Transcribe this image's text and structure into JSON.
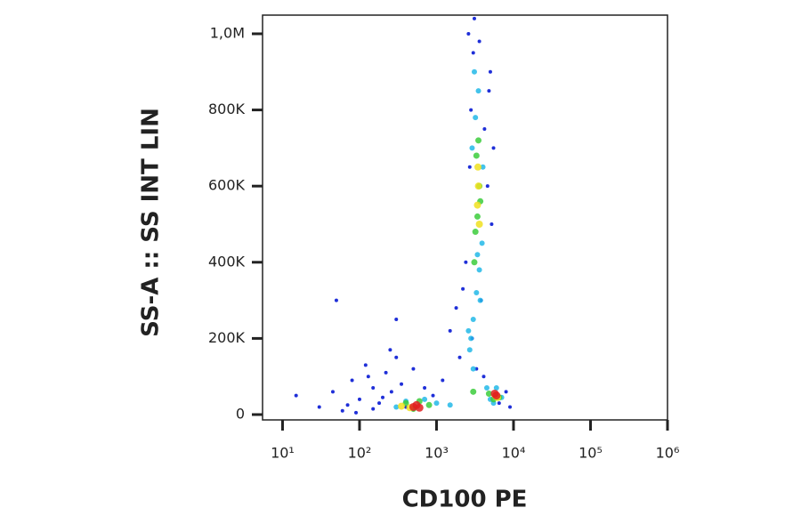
{
  "chart_data": {
    "type": "scatter",
    "x_label": "CD100 PE",
    "y_label": "SS-A :: SS INT LIN",
    "xscale": "log",
    "xlim": [
      5.5,
      1000000
    ],
    "ylim": [
      -14000,
      1049000
    ],
    "xticks": [
      {
        "value": 10,
        "label": "10¹"
      },
      {
        "value": 100,
        "label": "10²"
      },
      {
        "value": 1000,
        "label": "10³"
      },
      {
        "value": 10000,
        "label": "10⁴"
      },
      {
        "value": 100000,
        "label": "10⁵"
      },
      {
        "value": 1000000,
        "label": "10⁶"
      }
    ],
    "yticks": [
      0,
      {
        "value": 200000,
        "label": "200K"
      },
      {
        "value": 400000,
        "label": "400K"
      },
      {
        "value": 600000,
        "label": "600K"
      },
      {
        "value": 800000,
        "label": "800K"
      },
      {
        "value": 1000000,
        "label": "1,0M"
      }
    ],
    "series": [
      {
        "color": "#1f2fd8",
        "x": [
          30,
          45,
          60,
          80,
          100,
          120,
          150,
          180,
          220,
          260,
          300,
          350,
          400,
          150,
          90,
          70,
          200,
          250,
          1500,
          2000,
          1800,
          2200,
          2600,
          3000,
          5000,
          4800,
          5500,
          4200,
          2800,
          2400,
          3100,
          4600,
          5200,
          3800,
          2900,
          3300,
          4100,
          2700,
          3600,
          6500,
          8000,
          9000,
          700,
          1200,
          900,
          50,
          15,
          500,
          300,
          130
        ],
        "y": [
          20000,
          60000,
          10000,
          90000,
          40000,
          130000,
          70000,
          30000,
          110000,
          60000,
          150000,
          80000,
          20000,
          15000,
          5000,
          25000,
          45000,
          170000,
          220000,
          150000,
          280000,
          330000,
          1000000,
          950000,
          900000,
          850000,
          700000,
          750000,
          800000,
          400000,
          1040000,
          600000,
          500000,
          300000,
          200000,
          120000,
          100000,
          650000,
          980000,
          30000,
          60000,
          20000,
          70000,
          90000,
          50000,
          300000,
          50000,
          120000,
          250000,
          100000
        ]
      },
      {
        "color": "#22b8e8",
        "x": [
          2800,
          3000,
          3300,
          3600,
          3900,
          2900,
          3200,
          3500,
          2700,
          2600,
          3100,
          3400,
          4000,
          3700,
          300,
          400,
          700,
          1000,
          1500,
          4500,
          5000,
          6000,
          7000,
          5500,
          3000
        ],
        "y": [
          200000,
          250000,
          320000,
          380000,
          450000,
          700000,
          780000,
          850000,
          170000,
          220000,
          900000,
          420000,
          650000,
          300000,
          20000,
          35000,
          40000,
          30000,
          25000,
          70000,
          40000,
          70000,
          45000,
          30000,
          120000
        ]
      },
      {
        "color": "#3ccc3c",
        "x": [
          3200,
          3400,
          3600,
          3300,
          3500,
          3700,
          3100,
          400,
          500,
          800,
          600,
          4800,
          5500,
          6500,
          3000
        ],
        "y": [
          480000,
          520000,
          600000,
          680000,
          720000,
          560000,
          400000,
          30000,
          15000,
          25000,
          35000,
          55000,
          40000,
          45000,
          60000
        ]
      },
      {
        "color": "#f0e020",
        "x": [
          3400,
          3500,
          3600,
          3450,
          350,
          450,
          5800,
          6200
        ],
        "y": [
          550000,
          600000,
          500000,
          650000,
          22000,
          18000,
          50000,
          45000
        ]
      },
      {
        "color": "#e02020",
        "x": [
          500,
          550,
          600,
          6000,
          5700
        ],
        "y": [
          20000,
          25000,
          18000,
          50000,
          55000
        ]
      }
    ]
  }
}
